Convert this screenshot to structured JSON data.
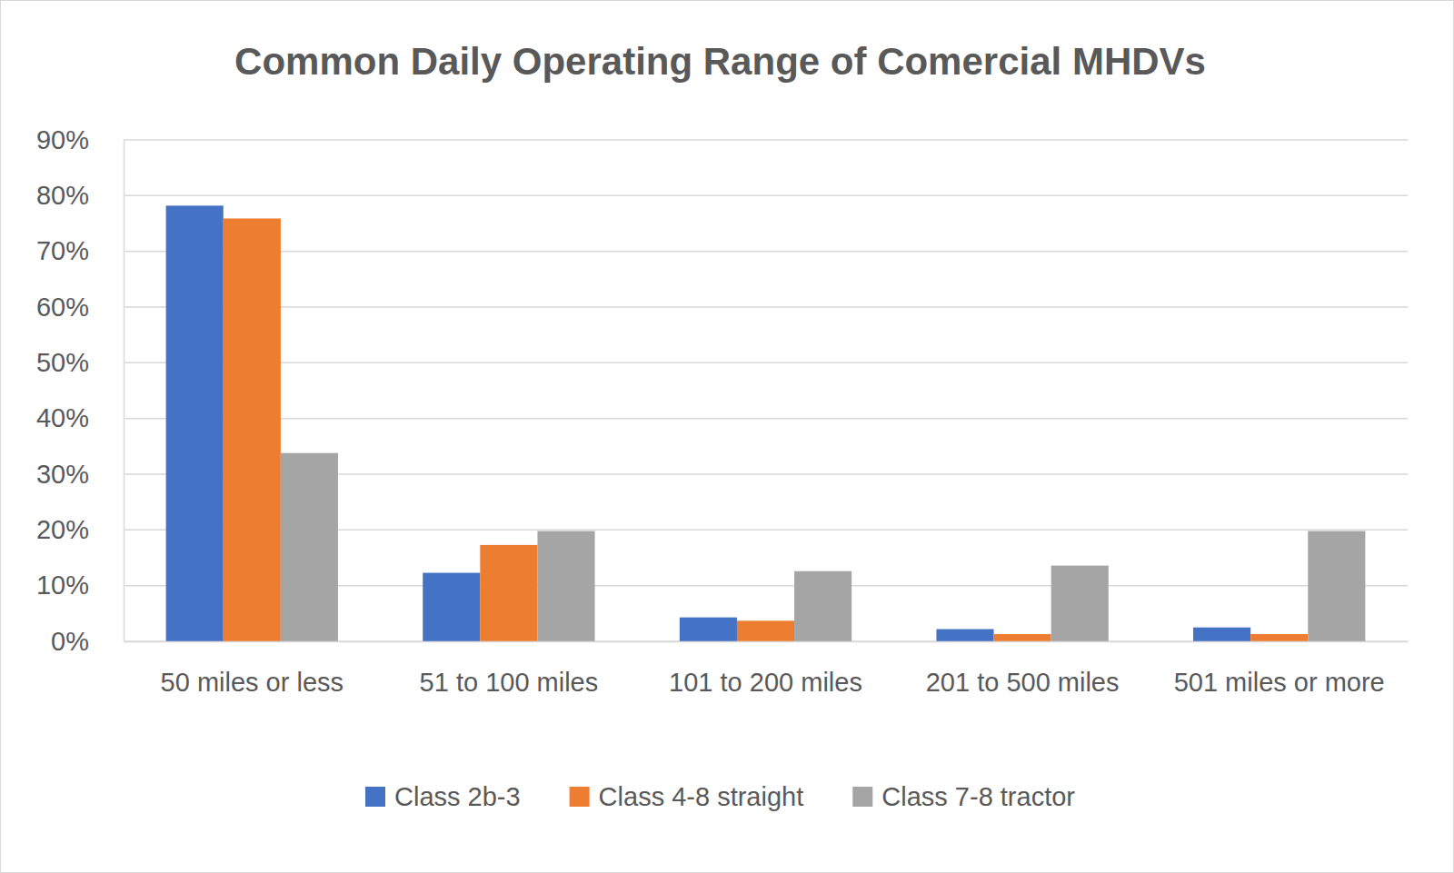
{
  "chart_data": {
    "type": "bar",
    "title": "Common Daily Operating Range of Comercial MHDVs",
    "categories": [
      "50 miles or less",
      "51 to 100 miles",
      "101 to 200 miles",
      "201 to 500 miles",
      "501 miles or more"
    ],
    "series": [
      {
        "name": "Class 2b-3",
        "color": "#4472c4",
        "values": [
          78.2,
          12.3,
          4.3,
          2.2,
          2.5
        ]
      },
      {
        "name": "Class 4-8 straight",
        "color": "#ed7d31",
        "values": [
          75.9,
          17.3,
          3.7,
          1.3,
          1.3
        ]
      },
      {
        "name": "Class 7-8 tractor",
        "color": "#a5a5a5",
        "values": [
          33.8,
          19.8,
          12.6,
          13.6,
          19.8
        ]
      }
    ],
    "ylim": [
      0,
      90
    ],
    "yticks": [
      {
        "value": 0,
        "label": "0%"
      },
      {
        "value": 10,
        "label": "10%"
      },
      {
        "value": 20,
        "label": "20%"
      },
      {
        "value": 30,
        "label": "30%"
      },
      {
        "value": 40,
        "label": "40%"
      },
      {
        "value": 50,
        "label": "50%"
      },
      {
        "value": 60,
        "label": "60%"
      },
      {
        "value": 70,
        "label": "70%"
      },
      {
        "value": 80,
        "label": "80%"
      },
      {
        "value": 90,
        "label": "90%"
      }
    ],
    "grid": true,
    "legend": "bottom"
  }
}
